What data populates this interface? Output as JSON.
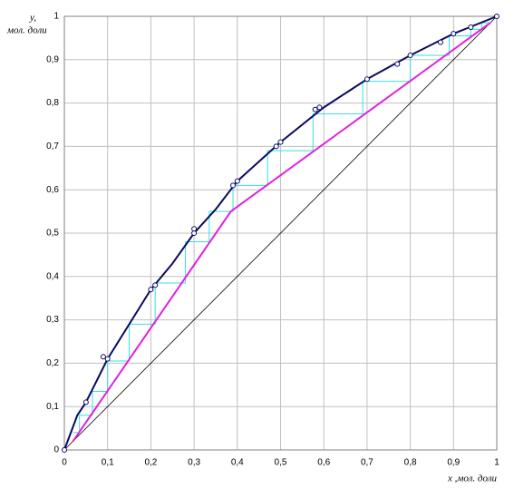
{
  "chart_data": {
    "type": "line",
    "ylabel": [
      "y,",
      "мол. доли"
    ],
    "xlabel": "x ,мол. доли",
    "xlim": [
      0,
      1
    ],
    "ylim": [
      0,
      1
    ],
    "xticks": [
      0,
      {
        "value": 0.1,
        "label": "0,1"
      },
      {
        "value": 0.2,
        "label": "0,2"
      },
      {
        "value": 0.3,
        "label": "0,3"
      },
      {
        "value": 0.4,
        "label": "0,4"
      },
      {
        "value": 0.5,
        "label": "0,5"
      },
      {
        "value": 0.6,
        "label": "0,6"
      },
      {
        "value": 0.7,
        "label": "0,7"
      },
      {
        "value": 0.8,
        "label": "0,8"
      },
      {
        "value": 0.9,
        "label": "0,9"
      },
      1
    ],
    "yticks": [
      0,
      {
        "value": 0.1,
        "label": "0,1"
      },
      {
        "value": 0.2,
        "label": "0,2"
      },
      {
        "value": 0.3,
        "label": "0,3"
      },
      {
        "value": 0.4,
        "label": "0,4"
      },
      {
        "value": 0.5,
        "label": "0,5"
      },
      {
        "value": 0.6,
        "label": "0,6"
      },
      {
        "value": 0.7,
        "label": "0,7"
      },
      {
        "value": 0.8,
        "label": "0,8"
      },
      {
        "value": 0.9,
        "label": "0,9"
      },
      1
    ],
    "grid": true,
    "series": [
      {
        "style": "line",
        "color": "#000000",
        "width": 0.8,
        "x": [
          0,
          1
        ],
        "values": [
          0,
          1
        ]
      },
      {
        "style": "line",
        "color": "#33e0e8",
        "width": 1,
        "x": [
          0.985,
          0.965,
          0.965,
          0.94,
          0.94,
          0.89,
          0.89,
          0.8,
          0.8,
          0.69,
          0.69,
          0.575,
          0.575,
          0.47,
          0.47,
          0.39,
          0.39,
          0.335,
          0.335,
          0.28,
          0.28,
          0.21,
          0.21,
          0.15,
          0.15,
          0.1,
          0.1,
          0.065,
          0.065,
          0.035,
          0.035,
          0.02
        ],
        "values": [
          0.985,
          0.985,
          0.97,
          0.97,
          0.955,
          0.955,
          0.91,
          0.91,
          0.85,
          0.85,
          0.775,
          0.775,
          0.69,
          0.69,
          0.61,
          0.61,
          0.55,
          0.55,
          0.48,
          0.48,
          0.385,
          0.385,
          0.29,
          0.29,
          0.205,
          0.205,
          0.135,
          0.135,
          0.08,
          0.08,
          0.04,
          0.04
        ]
      },
      {
        "style": "line",
        "color": "#e020e0",
        "width": 2,
        "x": [
          0.02,
          0.385,
          0.985
        ],
        "values": [
          0.02,
          0.55,
          0.985
        ]
      },
      {
        "style": "line",
        "color": "#0a0a60",
        "width": 2,
        "x": [
          0,
          0.03,
          0.05,
          0.1,
          0.15,
          0.2,
          0.25,
          0.3,
          0.35,
          0.4,
          0.5,
          0.6,
          0.7,
          0.8,
          0.9,
          1
        ],
        "values": [
          0,
          0.08,
          0.11,
          0.21,
          0.29,
          0.37,
          0.43,
          0.5,
          0.555,
          0.62,
          0.71,
          0.79,
          0.855,
          0.91,
          0.96,
          1
        ]
      },
      {
        "style": "markers",
        "color": "#0a0a60",
        "x": [
          0,
          0.05,
          0.09,
          0.1,
          0.2,
          0.21,
          0.3,
          0.3,
          0.39,
          0.4,
          0.49,
          0.5,
          0.58,
          0.59,
          0.7,
          0.77,
          0.8,
          0.87,
          0.9,
          0.94,
          1
        ],
        "values": [
          0,
          0.11,
          0.215,
          0.21,
          0.37,
          0.38,
          0.5,
          0.51,
          0.61,
          0.62,
          0.7,
          0.71,
          0.785,
          0.79,
          0.855,
          0.89,
          0.91,
          0.94,
          0.96,
          0.975,
          1
        ]
      }
    ]
  }
}
